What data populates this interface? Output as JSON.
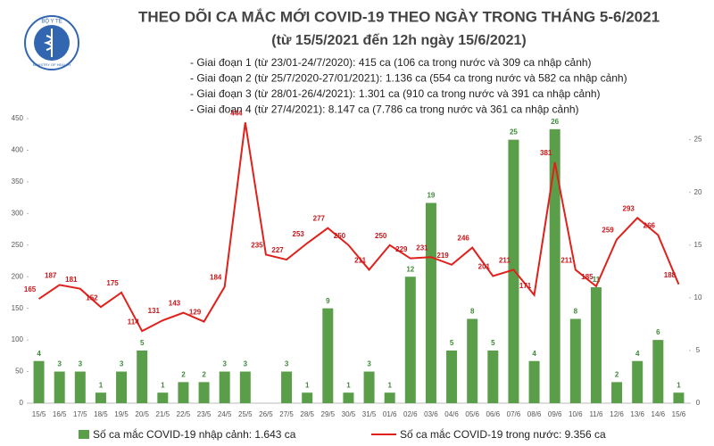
{
  "logo": {
    "top": "BỘ Y TẾ",
    "bottom": "MINISTRY OF HEALTH"
  },
  "chart_data": {
    "type": "combo",
    "title": "THEO DÕI CA MẮC MỚI COVID-19 THEO NGÀY TRONG THÁNG 5-6/2021",
    "subtitle": "(từ 15/5/2021 đến 12h ngày 15/6/2021)",
    "notes": [
      "- Giai đoạn 1 (từ 23/01-24/7/2020): 415 ca (106 ca trong nước và 309 ca nhập cảnh)",
      "- Giai đoạn 2 (từ 25/7/2020-27/01/2021): 1.136 ca (554 ca trong nước và 582 ca nhập cảnh)",
      "- Giai đoạn 3 (từ 28/01-26/4/2021): 1.301 ca (910 ca trong nước và 391 ca nhập cảnh)",
      "- Giai đoạn 4 (từ 27/4/2021): 8.147 ca (7.786 ca trong nước và 361 ca nhập cảnh)"
    ],
    "categories": [
      "15/5",
      "16/5",
      "17/5",
      "18/5",
      "19/5",
      "20/5",
      "21/5",
      "22/5",
      "23/5",
      "24/5",
      "25/5",
      "26/5",
      "27/5",
      "28/5",
      "29/5",
      "30/5",
      "31/5",
      "01/6",
      "02/6",
      "03/6",
      "04/6",
      "05/6",
      "06/6",
      "07/6",
      "08/6",
      "09/6",
      "10/6",
      "11/6",
      "12/6",
      "13/6",
      "14/6",
      "15/6"
    ],
    "series": [
      {
        "name": "Số ca mắc COVID-19 nhập cảnh: 1.643 ca",
        "type": "bar",
        "axis": "y2",
        "color": "#5a9e4a",
        "label_color": "#3d8a35",
        "values": [
          4,
          3,
          3,
          1,
          3,
          5,
          1,
          2,
          2,
          3,
          3,
          null,
          3,
          1,
          9,
          1,
          3,
          1,
          12,
          19,
          5,
          8,
          5,
          25,
          4,
          26,
          8,
          11,
          2,
          4,
          6,
          1
        ]
      },
      {
        "name": "Số ca mắc COVID-19 trong nước: 9.356 ca",
        "type": "line",
        "color": "#e0201b",
        "label_color": "#c8161a",
        "values": [
          165,
          187,
          181,
          152,
          175,
          114,
          131,
          143,
          129,
          184,
          444,
          235,
          227,
          253,
          277,
          250,
          211,
          250,
          229,
          231,
          219,
          246,
          201,
          211,
          171,
          381,
          211,
          185,
          259,
          293,
          266,
          188
        ]
      }
    ],
    "ylim": [
      0,
      450
    ],
    "yticks": [
      0,
      50,
      100,
      150,
      200,
      250,
      300,
      350,
      400,
      450
    ],
    "y2lim": [
      0,
      27
    ],
    "y2ticks": [
      0,
      5,
      10,
      15,
      20,
      25
    ]
  }
}
